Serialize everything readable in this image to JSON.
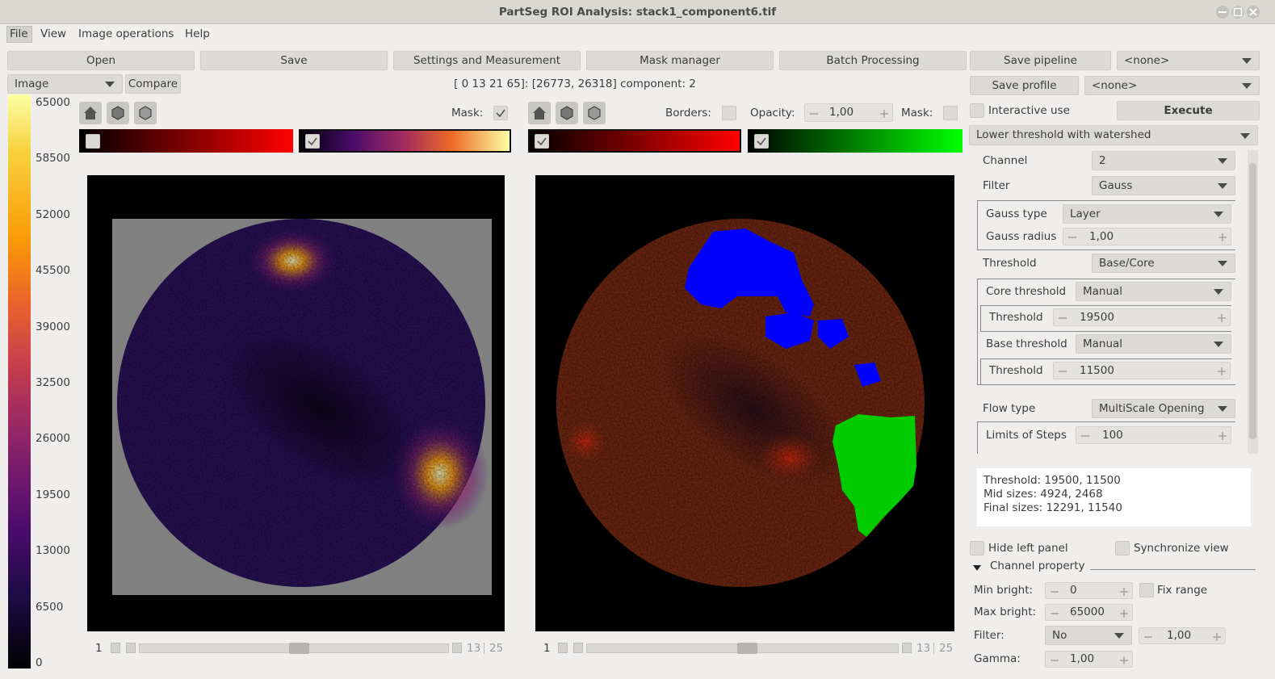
{
  "window": {
    "title": "PartSeg ROI Analysis: stack1_component6.tif"
  },
  "menu": [
    "File",
    "View",
    "Image operations",
    "Help"
  ],
  "toolbar": {
    "buttons": [
      "Open",
      "Save",
      "Settings and Measurement",
      "Mask manager",
      "Batch Processing"
    ],
    "save_pipeline": "Save pipeline",
    "pipeline": "<none>",
    "save_profile": "Save profile",
    "profile": "<none>"
  },
  "viewer": {
    "image_select": "Image",
    "compare": "Compare",
    "status": "[ 0 13 21 65]: [26773, 26318] component: 2",
    "colorbar_ticks": [
      "65000",
      "58500",
      "52000",
      "45500",
      "39000",
      "32500",
      "26000",
      "19500",
      "13000",
      "6500",
      "0"
    ],
    "left": {
      "mask_label": "Mask:",
      "slider": {
        "start": "1",
        "position": "13",
        "end": "25"
      }
    },
    "right": {
      "borders_label": "Borders:",
      "opacity_label": "Opacity:",
      "opacity": "1,00",
      "mask_label": "Mask:",
      "slider": {
        "start": "1",
        "position": "13",
        "end": "25"
      }
    }
  },
  "algorithm": {
    "interactive_use": "Interactive use",
    "execute": "Execute",
    "method": "Lower threshold with watershed",
    "parameters": [
      {
        "label": "Channel",
        "value": "2"
      },
      {
        "label": "Filter",
        "value": "Gauss"
      },
      {
        "label": "Gauss type",
        "value": "Layer"
      },
      {
        "label": "Gauss radius",
        "value": "1,00"
      },
      {
        "label": "Threshold",
        "value": "Base/Core"
      },
      {
        "label": "Core threshold",
        "value": "Manual"
      },
      {
        "label": "Threshold",
        "value": "19500"
      },
      {
        "label": "Base threshold",
        "value": "Manual"
      },
      {
        "label": "Threshold",
        "value": "11500"
      },
      {
        "label": "Flow type",
        "value": "MultiScale Opening"
      },
      {
        "label": "Limits of Steps",
        "value": "100"
      }
    ],
    "info": [
      "Threshold: 19500, 11500",
      "Mid sizes: 4924, 2468",
      "Final sizes: 12291, 11540"
    ]
  },
  "options": {
    "hide_left_panel": "Hide left panel",
    "synchronize_view": "Synchronize view",
    "channel_property": "Channel property",
    "min_bright_label": "Min bright:",
    "min_bright": "0",
    "fix_range": "Fix range",
    "max_bright_label": "Max bright:",
    "max_bright": "65000",
    "filter_label": "Filter:",
    "filter": "No",
    "filter_value": "1,00",
    "gamma_label": "Gamma:",
    "gamma": "1,00"
  }
}
